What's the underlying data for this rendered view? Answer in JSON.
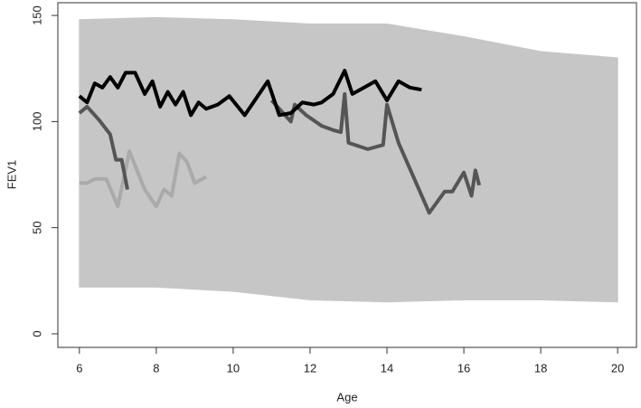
{
  "chart_data": {
    "type": "line",
    "x_label": "Age",
    "y_label": "FEV1",
    "xlim": [
      5.44,
      20.49
    ],
    "ylim": [
      -6.4,
      156
    ],
    "xticks": [
      6,
      8,
      10,
      12,
      14,
      16,
      18,
      20
    ],
    "yticks": [
      0,
      50,
      100,
      150
    ],
    "band": {
      "color": "#c6c6c6",
      "x": [
        6,
        8,
        10,
        12,
        14,
        16,
        18,
        20
      ],
      "upper": [
        148,
        149,
        148,
        146,
        146,
        140,
        133,
        130
      ],
      "lower": [
        22,
        22,
        20,
        16,
        15,
        16,
        16,
        15
      ]
    },
    "series": [
      {
        "color": "#aaaaaa",
        "x": [
          6,
          6.2,
          6.4,
          6.7,
          7.0,
          7.3,
          7.7,
          8.0,
          8.2,
          8.4,
          8.6,
          8.8,
          9.0,
          9.3
        ],
        "values": [
          71,
          71,
          73,
          73,
          60,
          86,
          68,
          60,
          68,
          65,
          85,
          81,
          71,
          74
        ]
      },
      {
        "color": "#555555",
        "x": [
          6,
          6.2,
          6.5,
          6.8,
          6.95,
          7.1,
          7.25
        ],
        "values": [
          104,
          107,
          101,
          94,
          82,
          82,
          68
        ]
      },
      {
        "color": "#555555",
        "x": [
          11.0,
          11.5,
          11.6,
          11.9,
          12.3,
          12.6,
          12.8,
          12.9,
          13.0,
          13.5,
          13.9,
          14.0,
          14.3,
          15.1,
          15.5,
          15.7,
          16.0,
          16.2,
          16.3,
          16.4
        ],
        "values": [
          110,
          100,
          108,
          103,
          98,
          96,
          95,
          113,
          90,
          87,
          89,
          108,
          90,
          57,
          67,
          67,
          76,
          65,
          77,
          70
        ]
      },
      {
        "color": "#000000",
        "x": [
          6,
          6.2,
          6.4,
          6.6,
          6.8,
          7.0,
          7.2,
          7.45,
          7.7,
          7.9,
          8.1,
          8.3,
          8.5,
          8.7,
          8.9,
          9.1,
          9.3,
          9.6,
          9.9,
          10.3,
          10.6,
          10.9,
          11.2,
          11.5,
          11.8,
          12.1,
          12.3,
          12.6,
          12.9,
          13.1,
          13.4,
          13.7,
          14.0,
          14.3,
          14.6,
          14.9
        ],
        "values": [
          112,
          109,
          118,
          116,
          121,
          116,
          123,
          123,
          113,
          119,
          107,
          114,
          108,
          114,
          103,
          109,
          106,
          108,
          112,
          103,
          111,
          119,
          103,
          104,
          109,
          108,
          109,
          113,
          124,
          113,
          116,
          119,
          110,
          119,
          116,
          115
        ]
      }
    ]
  }
}
